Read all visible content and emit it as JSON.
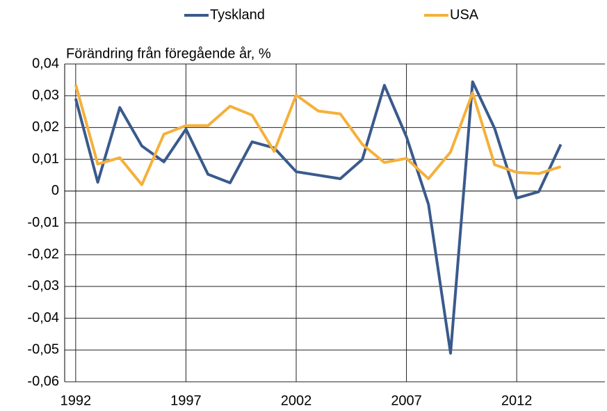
{
  "chart_data": {
    "type": "line",
    "y_axis_label": "Förändring från föregående år, %",
    "x": [
      1992,
      1993,
      1994,
      1995,
      1996,
      1997,
      1998,
      1999,
      2000,
      2001,
      2002,
      2003,
      2004,
      2005,
      2006,
      2007,
      2008,
      2009,
      2010,
      2011,
      2012,
      2013,
      2014
    ],
    "series": [
      {
        "name": "Tyskland",
        "color": "#3a5a8c",
        "values": [
          0.0291,
          0.0028,
          0.0263,
          0.0142,
          0.0092,
          0.0195,
          0.0053,
          0.0026,
          0.0155,
          0.0136,
          0.0061,
          0.005,
          0.0039,
          0.01,
          0.0333,
          0.0171,
          -0.0042,
          -0.051,
          0.0344,
          0.0197,
          -0.0022,
          -0.0002,
          0.0147
        ]
      },
      {
        "name": "USA",
        "color": "#f5b03a",
        "values": [
          0.0335,
          0.0085,
          0.0105,
          0.002,
          0.0179,
          0.0206,
          0.0206,
          0.0267,
          0.0239,
          0.0125,
          0.0302,
          0.0252,
          0.0243,
          0.0147,
          0.009,
          0.0103,
          0.0039,
          0.0123,
          0.0309,
          0.0083,
          0.0059,
          0.0055,
          0.0077
        ]
      }
    ],
    "xlim": [
      1991.5,
      2016
    ],
    "xticks": [
      1992,
      1997,
      2002,
      2007,
      2012
    ],
    "ylim": [
      -0.06,
      0.04
    ],
    "yticks": [
      {
        "value": -0.06,
        "label": "-0,06"
      },
      {
        "value": -0.05,
        "label": "-0,05"
      },
      {
        "value": -0.04,
        "label": "-0,04"
      },
      {
        "value": -0.03,
        "label": "-0,03"
      },
      {
        "value": -0.02,
        "label": "-0,02"
      },
      {
        "value": -0.01,
        "label": "-0,01"
      },
      {
        "value": 0,
        "label": "0"
      },
      {
        "value": 0.01,
        "label": "0,01"
      },
      {
        "value": 0.02,
        "label": "0,02"
      },
      {
        "value": 0.03,
        "label": "0,03"
      },
      {
        "value": 0.04,
        "label": "0,04"
      }
    ],
    "grid": true,
    "legend": "top"
  }
}
